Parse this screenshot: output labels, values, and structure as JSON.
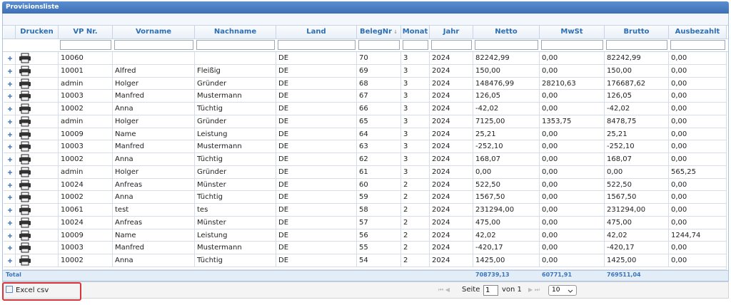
{
  "title": "Provisionsliste",
  "columns": [
    "Drucken",
    "VP Nr.",
    "Vorname",
    "Nachname",
    "Land",
    "BelegNr",
    "Monat",
    "Jahr",
    "Netto",
    "MwSt",
    "Brutto",
    "Ausbezahlt"
  ],
  "sort_indicator": "↓",
  "rows": [
    [
      "10060",
      "",
      "",
      "DE",
      "70",
      "3",
      "2024",
      "82242,99",
      "0,00",
      "82242,99",
      "0,00"
    ],
    [
      "10001",
      "Alfred",
      "Fleißig",
      "DE",
      "69",
      "3",
      "2024",
      "150,00",
      "0,00",
      "150,00",
      "0,00"
    ],
    [
      "admin",
      "Holger",
      "Gründer",
      "DE",
      "68",
      "3",
      "2024",
      "148476,99",
      "28210,63",
      "176687,62",
      "0,00"
    ],
    [
      "10003",
      "Manfred",
      "Mustermann",
      "DE",
      "67",
      "3",
      "2024",
      "126,05",
      "0,00",
      "126,05",
      "0,00"
    ],
    [
      "10002",
      "Anna",
      "Tüchtig",
      "DE",
      "66",
      "3",
      "2024",
      "-42,02",
      "0,00",
      "-42,02",
      "0,00"
    ],
    [
      "admin",
      "Holger",
      "Gründer",
      "DE",
      "65",
      "3",
      "2024",
      "7125,00",
      "1353,75",
      "8478,75",
      "0,00"
    ],
    [
      "10009",
      "Name",
      "Leistung",
      "DE",
      "64",
      "3",
      "2024",
      "25,21",
      "0,00",
      "25,21",
      "0,00"
    ],
    [
      "10003",
      "Manfred",
      "Mustermann",
      "DE",
      "63",
      "3",
      "2024",
      "-252,10",
      "0,00",
      "-252,10",
      "0,00"
    ],
    [
      "10002",
      "Anna",
      "Tüchtig",
      "DE",
      "62",
      "3",
      "2024",
      "168,07",
      "0,00",
      "168,07",
      "0,00"
    ],
    [
      "admin",
      "Holger",
      "Gründer",
      "DE",
      "61",
      "3",
      "2024",
      "0,00",
      "0,00",
      "0,00",
      "565,25"
    ],
    [
      "10024",
      "Anfreas",
      "Münster",
      "DE",
      "60",
      "2",
      "2024",
      "522,50",
      "0,00",
      "522,50",
      "0,00"
    ],
    [
      "10002",
      "Anna",
      "Tüchtig",
      "DE",
      "59",
      "2",
      "2024",
      "1567,50",
      "0,00",
      "1567,50",
      "0,00"
    ],
    [
      "10061",
      "test",
      "tes",
      "DE",
      "58",
      "2",
      "2024",
      "231294,00",
      "0,00",
      "231294,00",
      "0,00"
    ],
    [
      "10024",
      "Anfreas",
      "Münster",
      "DE",
      "57",
      "2",
      "2024",
      "475,00",
      "0,00",
      "475,00",
      "0,00"
    ],
    [
      "10009",
      "Name",
      "Leistung",
      "DE",
      "56",
      "2",
      "2024",
      "42,02",
      "0,00",
      "42,02",
      "1244,74"
    ],
    [
      "10003",
      "Manfred",
      "Mustermann",
      "DE",
      "55",
      "2",
      "2024",
      "-420,17",
      "0,00",
      "-420,17",
      "0,00"
    ],
    [
      "10002",
      "Anna",
      "Tüchtig",
      "DE",
      "54",
      "2",
      "2024",
      "1425,00",
      "0,00",
      "1425,00",
      "0,00"
    ]
  ],
  "total": {
    "label": "Total",
    "netto": "708739,13",
    "mwst": "60771,91",
    "brutto": "769511,04"
  },
  "pager": {
    "export": "Excel csv",
    "page_label": "Seite",
    "page": "1",
    "of": "von 1",
    "page_size": "10"
  }
}
